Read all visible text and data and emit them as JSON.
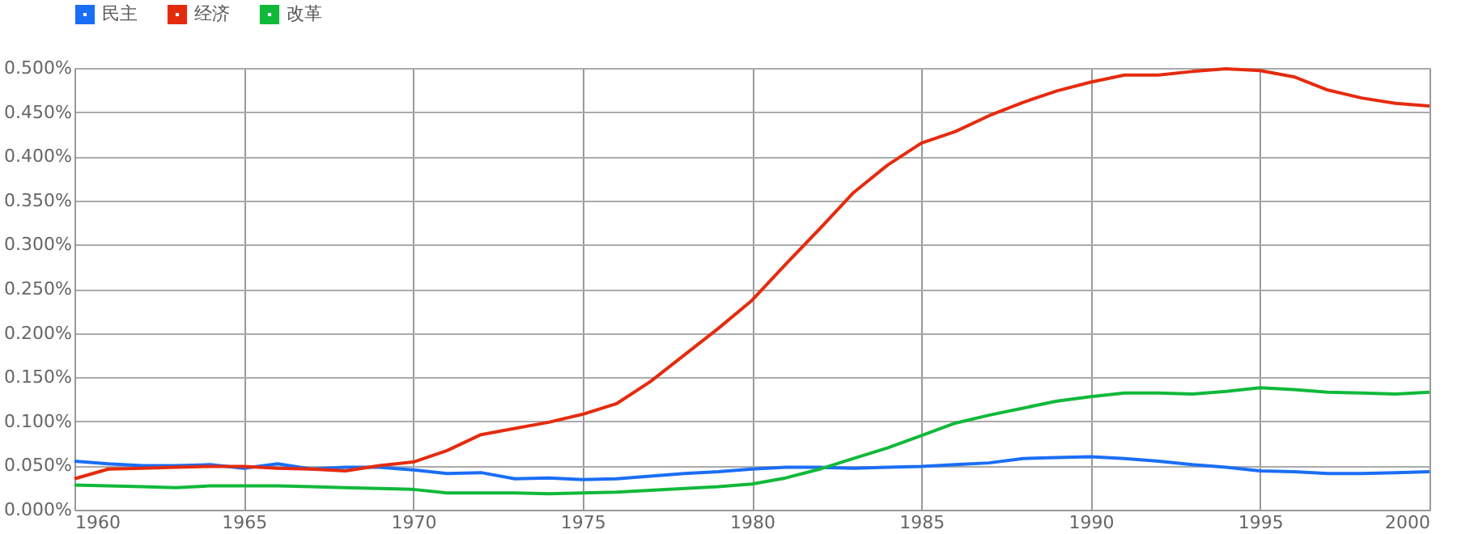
{
  "chart_data": {
    "type": "line",
    "x": [
      1960,
      1961,
      1962,
      1963,
      1964,
      1965,
      1966,
      1967,
      1968,
      1969,
      1970,
      1971,
      1972,
      1973,
      1974,
      1975,
      1976,
      1977,
      1978,
      1979,
      1980,
      1981,
      1982,
      1983,
      1984,
      1985,
      1986,
      1987,
      1988,
      1989,
      1990,
      1991,
      1992,
      1993,
      1994,
      1995,
      1996,
      1997,
      1998,
      1999,
      2000
    ],
    "series": [
      {
        "name": "民主",
        "color": "#1a6ef5",
        "values": [
          0.055,
          0.052,
          0.05,
          0.05,
          0.051,
          0.047,
          0.052,
          0.046,
          0.048,
          0.048,
          0.045,
          0.041,
          0.042,
          0.035,
          0.036,
          0.034,
          0.035,
          0.038,
          0.041,
          0.043,
          0.046,
          0.048,
          0.048,
          0.047,
          0.048,
          0.049,
          0.051,
          0.053,
          0.058,
          0.059,
          0.06,
          0.058,
          0.055,
          0.051,
          0.048,
          0.044,
          0.043,
          0.041,
          0.041,
          0.042,
          0.043
        ]
      },
      {
        "name": "经济",
        "color": "#e52b0e",
        "values": [
          0.035,
          0.046,
          0.047,
          0.048,
          0.049,
          0.049,
          0.047,
          0.046,
          0.044,
          0.05,
          0.054,
          0.067,
          0.085,
          0.092,
          0.099,
          0.108,
          0.12,
          0.145,
          0.175,
          0.205,
          0.237,
          0.278,
          0.318,
          0.359,
          0.39,
          0.415,
          0.428,
          0.446,
          0.461,
          0.474,
          0.484,
          0.492,
          0.492,
          0.496,
          0.499,
          0.497,
          0.49,
          0.475,
          0.466,
          0.46,
          0.457
        ]
      },
      {
        "name": "改革",
        "color": "#10b93a",
        "values": [
          0.028,
          0.027,
          0.026,
          0.025,
          0.027,
          0.027,
          0.027,
          0.026,
          0.025,
          0.024,
          0.023,
          0.019,
          0.019,
          0.019,
          0.018,
          0.019,
          0.02,
          0.022,
          0.024,
          0.026,
          0.029,
          0.036,
          0.046,
          0.058,
          0.07,
          0.084,
          0.098,
          0.107,
          0.115,
          0.123,
          0.128,
          0.132,
          0.132,
          0.131,
          0.134,
          0.138,
          0.136,
          0.133,
          0.132,
          0.131,
          0.133
        ]
      }
    ],
    "xlim": [
      1960,
      2000
    ],
    "xticks": [
      1960,
      1965,
      1970,
      1975,
      1980,
      1985,
      1990,
      1995,
      2000
    ],
    "ylim": [
      0,
      0.5
    ],
    "yticks": [
      {
        "value": 0,
        "label": "0.000%"
      },
      {
        "value": 0.05,
        "label": "0.050%"
      },
      {
        "value": 0.1,
        "label": "0.100%"
      },
      {
        "value": 0.15,
        "label": "0.150%"
      },
      {
        "value": 0.2,
        "label": "0.200%"
      },
      {
        "value": 0.25,
        "label": "0.250%"
      },
      {
        "value": 0.3,
        "label": "0.300%"
      },
      {
        "value": 0.35,
        "label": "0.350%"
      },
      {
        "value": 0.4,
        "label": "0.400%"
      },
      {
        "value": 0.45,
        "label": "0.450%"
      },
      {
        "value": 0.5,
        "label": "0.500%"
      }
    ],
    "grid": true,
    "legend": "top",
    "marker": "none",
    "line_style": "solid"
  }
}
